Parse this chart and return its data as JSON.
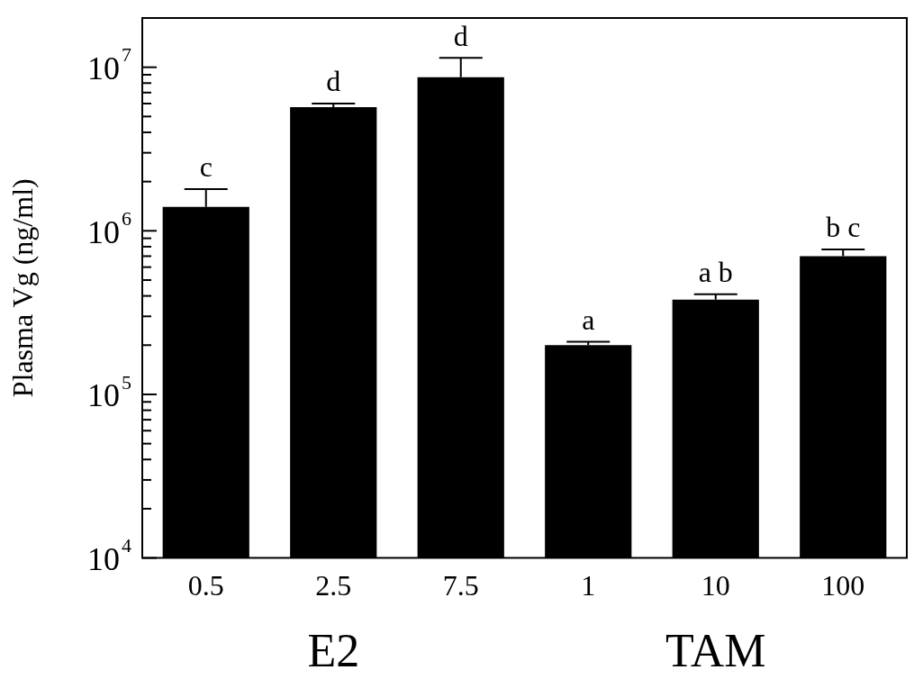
{
  "chart_data": {
    "type": "bar",
    "ylabel": "Plasma Vg (ng/ml)",
    "categories": [
      "0.5",
      "2.5",
      "7.5",
      "1",
      "10",
      "100"
    ],
    "series": [
      {
        "color": "#000000",
        "values": [
          1400000,
          5700000,
          8700000,
          200000,
          380000,
          700000
        ],
        "errors": [
          [
            1400000,
            1800000
          ],
          [
            5700000,
            6000000
          ],
          [
            8700000,
            11400000
          ],
          [
            200000,
            210000
          ],
          [
            380000,
            410000
          ],
          [
            700000,
            770000
          ]
        ],
        "value_labels": [
          "c",
          "d",
          "d",
          "a",
          "a b",
          "b c"
        ]
      }
    ],
    "log": "y",
    "ylim": [
      10000,
      20000000
    ],
    "yticks": [
      {
        "value": 10000,
        "label": "10$^{4}$"
      },
      {
        "value": 20000,
        "label": null
      },
      {
        "value": 30000,
        "label": null
      },
      {
        "value": 40000,
        "label": null
      },
      {
        "value": 50000,
        "label": null
      },
      {
        "value": 60000,
        "label": null
      },
      {
        "value": 70000,
        "label": null
      },
      {
        "value": 80000,
        "label": null
      },
      {
        "value": 90000,
        "label": null
      },
      {
        "value": 100000,
        "label": "10$^{5}$"
      },
      {
        "value": 200000,
        "label": null
      },
      {
        "value": 300000,
        "label": null
      },
      {
        "value": 400000,
        "label": null
      },
      {
        "value": 500000,
        "label": null
      },
      {
        "value": 600000,
        "label": null
      },
      {
        "value": 700000,
        "label": null
      },
      {
        "value": 800000,
        "label": null
      },
      {
        "value": 900000,
        "label": null
      },
      {
        "value": 1000000,
        "label": "10$^{6}$"
      },
      {
        "value": 2000000,
        "label": null
      },
      {
        "value": 3000000,
        "label": null
      },
      {
        "value": 4000000,
        "label": null
      },
      {
        "value": 5000000,
        "label": null
      },
      {
        "value": 6000000,
        "label": null
      },
      {
        "value": 7000000,
        "label": null
      },
      {
        "value": 8000000,
        "label": null
      },
      {
        "value": 9000000,
        "label": null
      },
      {
        "value": 10000000,
        "label": "10$^{7}$"
      }
    ],
    "grid": false,
    "legend": false,
    "annotations": [
      "E2",
      "TAM"
    ]
  }
}
